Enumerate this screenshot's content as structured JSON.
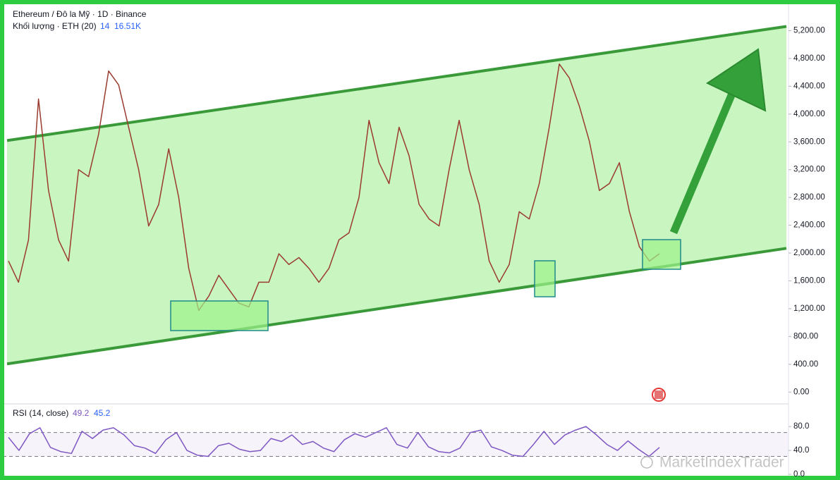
{
  "chart_data": [
    {
      "type": "line",
      "title": "Ethereum / Đô la Mỹ · 1D · Binance",
      "volume_legend": {
        "label": "Khối lượng · ETH (20)",
        "values": [
          14,
          {
            "value": 16510,
            "label": "16.51K"
          }
        ]
      },
      "series": [
        {
          "color": "#9a3b2e",
          "values": [
            1885,
            1580,
            2190,
            4217,
            2900,
            2190,
            1885,
            3200,
            3100,
            3710,
            4620,
            4420,
            3810,
            3200,
            2390,
            2700,
            3500,
            2800,
            1780,
            1175,
            1380,
            1680,
            1480,
            1280,
            1225,
            1580,
            1580,
            1990,
            1835,
            1935,
            1780,
            1580,
            1780,
            2190,
            2290,
            2800,
            3910,
            3300,
            3000,
            3810,
            3400,
            2700,
            2490,
            2390,
            3200,
            3910,
            3200,
            2700,
            1885,
            1580,
            1835,
            2595,
            2490,
            3000,
            3810,
            4720,
            4520,
            4115,
            3610,
            2900,
            3000,
            3300,
            2595,
            2090,
            1885,
            1990
          ]
        }
      ],
      "channel": {
        "upper": [
          3619,
          5261
        ],
        "lower": [
          405,
          2068
        ],
        "color": "#3a9a3a",
        "fill": "#c9f5c0"
      },
      "ylim": [
        -160,
        5560
      ],
      "yticks": [
        {
          "value": 5200,
          "label": "5,200.00"
        },
        {
          "value": 4800,
          "label": "4,800.00"
        },
        {
          "value": 4400,
          "label": "4,400.00"
        },
        {
          "value": 4000,
          "label": "4,000.00"
        },
        {
          "value": 3600,
          "label": "3,600.00"
        },
        {
          "value": 3200,
          "label": "3,200.00"
        },
        {
          "value": 2800,
          "label": "2,800.00"
        },
        {
          "value": 2400,
          "label": "2,400.00"
        },
        {
          "value": 2000,
          "label": "2,000.00"
        },
        {
          "value": 1600,
          "label": "1,600.00"
        },
        {
          "value": 1200,
          "label": "1,200.00"
        },
        {
          "value": 800,
          "label": "800.00"
        },
        {
          "value": 400,
          "label": "400.00"
        },
        {
          "value": 0,
          "label": "0.00"
        }
      ]
    },
    {
      "type": "line",
      "title": "RSI (14, close)",
      "legend_values": [
        49.2,
        45.2
      ],
      "series": [
        {
          "color": "#7e57c2",
          "values": [
            62,
            40,
            68,
            78,
            45,
            38,
            35,
            72,
            60,
            74,
            78,
            66,
            48,
            44,
            35,
            58,
            70,
            40,
            32,
            30,
            48,
            52,
            42,
            38,
            40,
            60,
            55,
            66,
            50,
            55,
            44,
            38,
            58,
            68,
            62,
            70,
            78,
            50,
            44,
            70,
            46,
            38,
            36,
            44,
            70,
            74,
            46,
            40,
            32,
            30,
            50,
            72,
            50,
            66,
            74,
            80,
            66,
            50,
            40,
            56,
            42,
            30,
            45
          ]
        }
      ],
      "bands": [
        30,
        70
      ],
      "ylim": [
        0,
        112
      ],
      "yticks": [
        {
          "value": 80,
          "label": "80.0"
        },
        {
          "value": 40,
          "label": "40.0"
        },
        {
          "value": 0,
          "label": "0.0"
        }
      ]
    }
  ],
  "watermark": "MarketIndexTrader"
}
